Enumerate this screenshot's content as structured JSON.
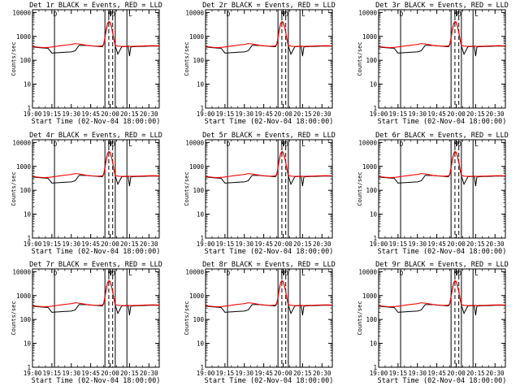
{
  "chart_data": {
    "type": "line",
    "layout": "3x3 grid of panels",
    "background_color": "#ffffff",
    "axis_color": "#000000",
    "series_colors": {
      "events": "#000000",
      "lld": "#ff0000"
    },
    "common": {
      "xlabel": "Start Time (02-Nov-04 18:00:00)",
      "ylabel": "Counts/sec",
      "x_tick_labels": [
        "19:00",
        "19:15",
        "19:30",
        "19:45",
        "20:00",
        "20:15",
        "20:30"
      ],
      "x_tick_minutes": [
        0,
        15,
        30,
        45,
        60,
        75,
        90
      ],
      "xlim_minutes": [
        0,
        98
      ],
      "y_tick_labels": [
        "1",
        "10",
        "100",
        "1000",
        "10000"
      ],
      "y_tick_values": [
        1,
        10,
        100,
        1000,
        10000
      ],
      "ylim": [
        1,
        13000
      ],
      "y_scale": "log",
      "grid": false,
      "vertical_markers_minutes": [
        17,
        56,
        59,
        62,
        64,
        73
      ],
      "vertical_markers_dashed": [
        false,
        false,
        true,
        true,
        false,
        false
      ],
      "marker_letters": [
        "D",
        "N",
        "P",
        "D",
        "L"
      ],
      "marker_letters_minutes": [
        17,
        59,
        60,
        62,
        75
      ]
    },
    "x_minutes": [
      0,
      3,
      6,
      9,
      12,
      15,
      18,
      21,
      24,
      27,
      30,
      33,
      36,
      39,
      42,
      45,
      48,
      51,
      54,
      55,
      56,
      57,
      58,
      59,
      60,
      61,
      62,
      63,
      64,
      66,
      69,
      72,
      74,
      75,
      76,
      78,
      81,
      84,
      87,
      90,
      93,
      96,
      98
    ],
    "panels": [
      {
        "title": "Det 1r BLACK = Events, RED = LLD",
        "events": [
          360,
          345,
          335,
          325,
          320,
          200,
          205,
          210,
          215,
          220,
          225,
          250,
          420,
          420,
          415,
          400,
          390,
          375,
          370,
          450,
          900,
          2000,
          3500,
          4000,
          3800,
          2500,
          1500,
          700,
          400,
          180,
          370,
          375,
          380,
          150,
          360,
          370,
          375,
          380,
          385,
          390,
          395,
          390,
          385
        ],
        "lld": [
          380,
          360,
          345,
          340,
          345,
          360,
          380,
          400,
          420,
          440,
          460,
          500,
          480,
          450,
          420,
          405,
          395,
          390,
          400,
          470,
          850,
          1800,
          3400,
          4200,
          3900,
          2600,
          1400,
          750,
          420,
          390,
          380,
          385,
          390,
          385,
          380,
          385,
          390,
          395,
          400,
          405,
          410,
          405,
          400
        ]
      },
      {
        "title": "Det 2r BLACK = Events, RED = LLD",
        "events": [
          360,
          345,
          335,
          325,
          320,
          200,
          205,
          210,
          215,
          220,
          225,
          250,
          420,
          420,
          415,
          400,
          390,
          375,
          370,
          450,
          900,
          2000,
          3500,
          4000,
          3800,
          2500,
          1500,
          700,
          400,
          180,
          370,
          375,
          380,
          150,
          360,
          370,
          375,
          380,
          385,
          390,
          395,
          390,
          385
        ],
        "lld": [
          380,
          360,
          345,
          340,
          345,
          360,
          380,
          400,
          420,
          440,
          460,
          500,
          480,
          450,
          420,
          405,
          395,
          390,
          400,
          470,
          850,
          1800,
          3400,
          4200,
          3900,
          2600,
          1400,
          750,
          420,
          390,
          380,
          385,
          390,
          385,
          380,
          385,
          390,
          395,
          400,
          405,
          410,
          405,
          400
        ]
      },
      {
        "title": "Det 3r BLACK = Events, RED = LLD",
        "events": [
          360,
          345,
          335,
          325,
          320,
          200,
          205,
          210,
          215,
          220,
          225,
          250,
          420,
          420,
          415,
          400,
          390,
          375,
          370,
          450,
          900,
          2000,
          3500,
          4000,
          3800,
          2500,
          1500,
          700,
          400,
          180,
          370,
          375,
          380,
          150,
          360,
          370,
          375,
          380,
          385,
          390,
          395,
          390,
          385
        ],
        "lld": [
          380,
          360,
          345,
          340,
          345,
          360,
          380,
          400,
          420,
          440,
          460,
          500,
          480,
          450,
          420,
          405,
          395,
          390,
          400,
          470,
          850,
          1800,
          3400,
          4200,
          3900,
          2600,
          1400,
          750,
          420,
          390,
          380,
          385,
          390,
          385,
          380,
          385,
          390,
          395,
          400,
          405,
          410,
          405,
          400
        ]
      },
      {
        "title": "Det 4r BLACK = Events, RED = LLD",
        "events": [
          360,
          345,
          335,
          325,
          320,
          200,
          205,
          210,
          215,
          220,
          225,
          250,
          420,
          420,
          415,
          400,
          390,
          375,
          370,
          450,
          900,
          2000,
          3500,
          4000,
          3800,
          2500,
          1500,
          700,
          400,
          180,
          370,
          375,
          380,
          150,
          360,
          370,
          375,
          380,
          385,
          390,
          395,
          390,
          385
        ],
        "lld": [
          380,
          360,
          345,
          340,
          345,
          360,
          380,
          400,
          420,
          440,
          460,
          500,
          480,
          450,
          420,
          405,
          395,
          390,
          400,
          470,
          850,
          1800,
          3400,
          4200,
          3900,
          2600,
          1400,
          750,
          420,
          390,
          380,
          385,
          390,
          385,
          380,
          385,
          390,
          395,
          400,
          405,
          410,
          405,
          400
        ]
      },
      {
        "title": "Det 5r BLACK = Events, RED = LLD",
        "events": [
          360,
          345,
          335,
          325,
          320,
          200,
          205,
          210,
          215,
          220,
          225,
          250,
          420,
          420,
          415,
          400,
          390,
          375,
          370,
          450,
          900,
          2000,
          3500,
          4000,
          3800,
          2500,
          1500,
          700,
          400,
          180,
          370,
          375,
          380,
          150,
          360,
          370,
          375,
          380,
          385,
          390,
          395,
          390,
          385
        ],
        "lld": [
          380,
          360,
          345,
          340,
          345,
          360,
          380,
          400,
          420,
          440,
          460,
          500,
          480,
          450,
          420,
          405,
          395,
          390,
          400,
          470,
          850,
          1800,
          3400,
          4200,
          3900,
          2600,
          1400,
          750,
          420,
          390,
          380,
          385,
          390,
          385,
          380,
          385,
          390,
          395,
          400,
          405,
          410,
          405,
          400
        ]
      },
      {
        "title": "Det 6r BLACK = Events, RED = LLD",
        "events": [
          360,
          345,
          335,
          325,
          320,
          200,
          205,
          210,
          215,
          220,
          225,
          250,
          420,
          420,
          415,
          400,
          390,
          375,
          370,
          450,
          900,
          2000,
          3500,
          4000,
          3800,
          2500,
          1500,
          700,
          400,
          180,
          370,
          375,
          380,
          150,
          360,
          370,
          375,
          380,
          385,
          390,
          395,
          390,
          385
        ],
        "lld": [
          380,
          360,
          345,
          340,
          345,
          360,
          380,
          400,
          420,
          440,
          460,
          500,
          480,
          450,
          420,
          405,
          395,
          390,
          400,
          470,
          850,
          1800,
          3400,
          4200,
          3900,
          2600,
          1400,
          750,
          420,
          390,
          380,
          385,
          390,
          385,
          380,
          385,
          390,
          395,
          400,
          405,
          410,
          405,
          400
        ]
      },
      {
        "title": "Det 7r BLACK = Events, RED = LLD",
        "events": [
          360,
          345,
          335,
          325,
          320,
          200,
          205,
          210,
          215,
          220,
          225,
          250,
          420,
          420,
          415,
          400,
          390,
          375,
          370,
          450,
          900,
          2000,
          3500,
          4000,
          3800,
          2500,
          1500,
          700,
          400,
          180,
          370,
          375,
          380,
          150,
          360,
          370,
          375,
          380,
          385,
          390,
          395,
          390,
          385
        ],
        "lld": [
          380,
          360,
          345,
          340,
          345,
          360,
          380,
          400,
          420,
          440,
          460,
          500,
          480,
          450,
          420,
          405,
          395,
          390,
          400,
          470,
          850,
          1800,
          3400,
          4200,
          3900,
          2600,
          1400,
          750,
          420,
          390,
          380,
          385,
          390,
          385,
          380,
          385,
          390,
          395,
          400,
          405,
          410,
          405,
          400
        ]
      },
      {
        "title": "Det 8r BLACK = Events, RED = LLD",
        "events": [
          360,
          345,
          335,
          325,
          320,
          200,
          205,
          210,
          215,
          220,
          225,
          250,
          420,
          420,
          415,
          400,
          390,
          375,
          370,
          450,
          900,
          2000,
          3500,
          4000,
          3800,
          2500,
          1500,
          700,
          400,
          180,
          370,
          375,
          380,
          150,
          360,
          370,
          375,
          380,
          385,
          390,
          395,
          390,
          385
        ],
        "lld": [
          380,
          360,
          345,
          340,
          345,
          360,
          380,
          400,
          420,
          440,
          460,
          500,
          480,
          450,
          420,
          405,
          395,
          390,
          400,
          470,
          850,
          1800,
          3400,
          4200,
          3900,
          2600,
          1400,
          750,
          420,
          390,
          380,
          385,
          390,
          385,
          380,
          385,
          390,
          395,
          400,
          405,
          410,
          405,
          400
        ]
      },
      {
        "title": "Det 9r BLACK = Events, RED = LLD",
        "events": [
          360,
          345,
          335,
          325,
          320,
          200,
          205,
          210,
          215,
          220,
          225,
          250,
          420,
          420,
          415,
          400,
          390,
          375,
          370,
          450,
          900,
          2000,
          3500,
          4000,
          3800,
          2500,
          1500,
          700,
          400,
          180,
          370,
          375,
          380,
          150,
          360,
          370,
          375,
          380,
          385,
          390,
          395,
          390,
          385
        ],
        "lld": [
          380,
          360,
          345,
          340,
          345,
          360,
          380,
          400,
          420,
          440,
          460,
          500,
          480,
          450,
          420,
          405,
          395,
          390,
          400,
          470,
          850,
          1800,
          3400,
          4200,
          3900,
          2600,
          1400,
          750,
          420,
          390,
          380,
          385,
          390,
          385,
          380,
          385,
          390,
          395,
          400,
          405,
          410,
          405,
          400
        ]
      }
    ]
  }
}
